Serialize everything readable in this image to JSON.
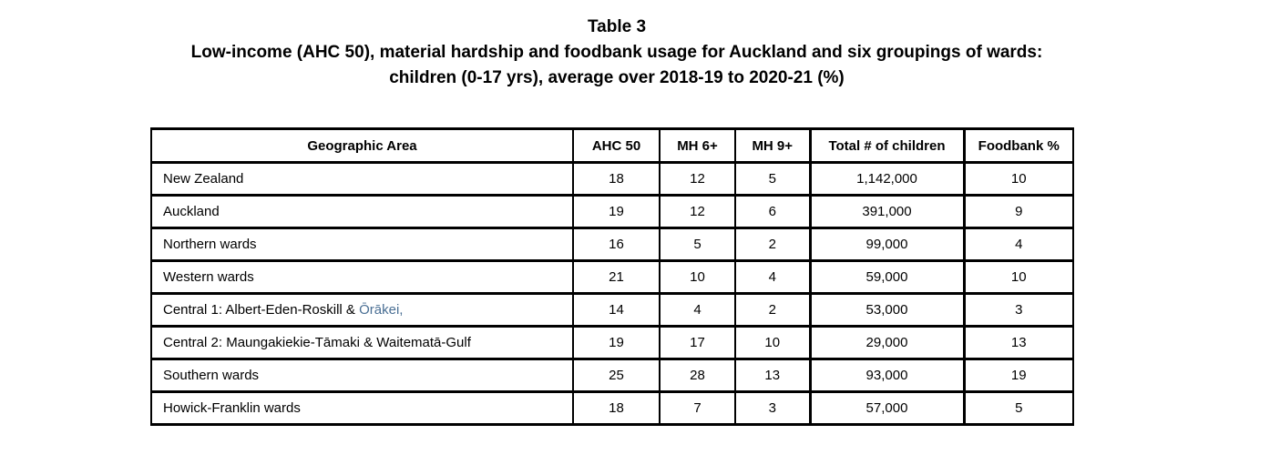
{
  "colors": {
    "page_background": "#ffffff",
    "text": "#000000",
    "table_border": "#000000",
    "orakei_highlight": "#4a6f94"
  },
  "title": {
    "line1": "Table 3",
    "line2": "Low-income (AHC 50), material hardship and foodbank usage for Auckland and six groupings of wards:",
    "line3": "children (0-17 yrs), average over 2018-19 to 2020-21 (%)"
  },
  "table": {
    "columns": [
      "Geographic Area",
      "AHC 50",
      "MH 6+",
      "MH 9+",
      "Total # of children",
      "Foodbank %"
    ],
    "rows": [
      {
        "area": "New Zealand",
        "area_suffix": "",
        "ahc50": "18",
        "mh6": "12",
        "mh9": "5",
        "total_children": "1,142,000",
        "foodbank": "10"
      },
      {
        "area": "Auckland",
        "area_suffix": "",
        "ahc50": "19",
        "mh6": "12",
        "mh9": "6",
        "total_children": "391,000",
        "foodbank": "9"
      },
      {
        "area": "Northern wards",
        "area_suffix": "",
        "ahc50": "16",
        "mh6": "5",
        "mh9": "2",
        "total_children": "99,000",
        "foodbank": "4"
      },
      {
        "area": "Western wards",
        "area_suffix": "",
        "ahc50": "21",
        "mh6": "10",
        "mh9": "4",
        "total_children": "59,000",
        "foodbank": "10"
      },
      {
        "area": "Central 1: Albert-Eden-Roskill & ",
        "area_suffix": "Ōrākei,",
        "ahc50": "14",
        "mh6": "4",
        "mh9": "2",
        "total_children": "53,000",
        "foodbank": "3"
      },
      {
        "area": "Central 2: Maungakiekie-Tāmaki & Waitematā-Gulf",
        "area_suffix": "",
        "ahc50": "19",
        "mh6": "17",
        "mh9": "10",
        "total_children": "29,000",
        "foodbank": "13"
      },
      {
        "area": "Southern wards",
        "area_suffix": "",
        "ahc50": "25",
        "mh6": "28",
        "mh9": "13",
        "total_children": "93,000",
        "foodbank": "19"
      },
      {
        "area": "Howick-Franklin wards",
        "area_suffix": "",
        "ahc50": "18",
        "mh6": "7",
        "mh9": "3",
        "total_children": "57,000",
        "foodbank": "5"
      }
    ]
  }
}
